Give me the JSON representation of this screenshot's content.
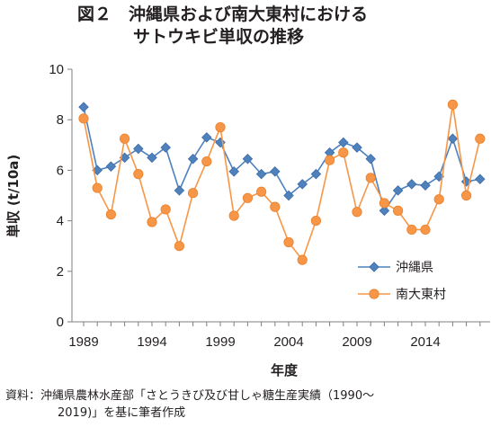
{
  "title": {
    "line1": "図２　沖縄県および南大東村における",
    "line2": "サトウキビ単収の推移"
  },
  "source": {
    "line1": "資料：沖縄県農林水産部「さとうきび及び甘しゃ糖生産実績（1990～",
    "line2": "2019)」を基に筆者作成"
  },
  "chart_data": {
    "type": "line",
    "xlabel": "年度",
    "ylabel": "単収 (t/10a)",
    "ylim": [
      0,
      10
    ],
    "yticks": [
      0,
      2,
      4,
      6,
      8,
      10
    ],
    "xlim": [
      1989,
      2019
    ],
    "xticks": [
      1989,
      1994,
      1999,
      2004,
      2009,
      2014
    ],
    "grid": false,
    "legend": "right",
    "x": [
      1989,
      1990,
      1991,
      1992,
      1993,
      1994,
      1995,
      1996,
      1997,
      1998,
      1999,
      2000,
      2001,
      2002,
      2003,
      2004,
      2005,
      2006,
      2007,
      2008,
      2009,
      2010,
      2011,
      2012,
      2013,
      2014,
      2015,
      2016,
      2017,
      2018
    ],
    "series": [
      {
        "name": "沖縄県",
        "color": "#4f81bd",
        "marker": "diamond",
        "values": [
          8.5,
          6.0,
          6.15,
          6.5,
          6.85,
          6.5,
          6.9,
          5.2,
          6.45,
          7.3,
          7.1,
          5.95,
          6.45,
          5.85,
          5.95,
          5.0,
          5.45,
          5.85,
          6.7,
          7.1,
          6.9,
          6.45,
          4.4,
          5.2,
          5.45,
          5.4,
          5.75,
          7.25,
          5.55,
          5.65
        ]
      },
      {
        "name": "南大東村",
        "color": "#f79646",
        "marker": "circle",
        "values": [
          8.05,
          5.3,
          4.25,
          7.25,
          5.85,
          3.95,
          4.45,
          3.0,
          5.1,
          6.35,
          7.7,
          4.2,
          4.9,
          5.15,
          4.55,
          3.15,
          2.45,
          4.0,
          6.4,
          6.7,
          4.35,
          5.7,
          4.7,
          4.4,
          3.65,
          3.65,
          4.85,
          8.6,
          5.0,
          7.25
        ]
      }
    ]
  }
}
